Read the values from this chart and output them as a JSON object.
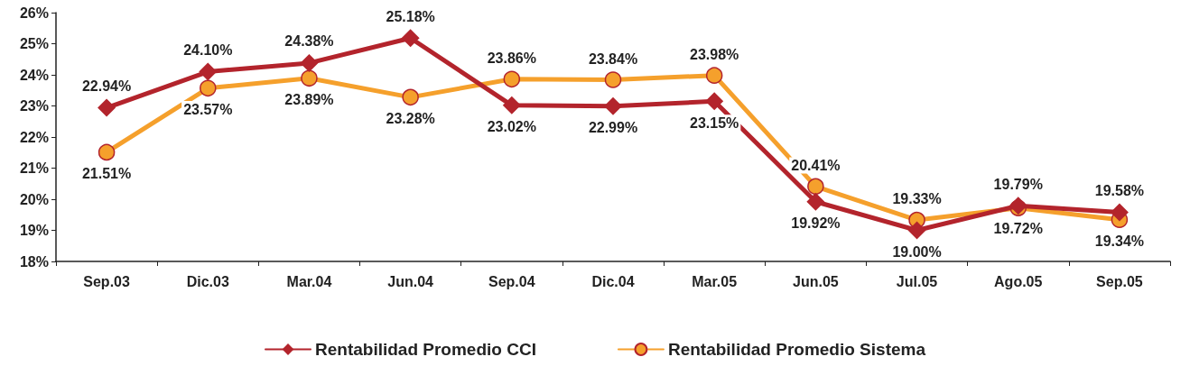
{
  "chart_data": {
    "type": "line",
    "categories": [
      "Sep.03",
      "Dic.03",
      "Mar.04",
      "Jun.04",
      "Sep.04",
      "Dic.04",
      "Mar.05",
      "Jun.05",
      "Jul.05",
      "Ago.05",
      "Sep.05"
    ],
    "series": [
      {
        "name": "Rentabilidad Promedio CCI",
        "color": "#b3242c",
        "marker": "diamond",
        "values": [
          22.94,
          24.1,
          24.38,
          25.18,
          23.02,
          22.99,
          23.15,
          19.92,
          19.0,
          19.79,
          19.58
        ],
        "value_labels": [
          "22.94%",
          "24.10%",
          "24.38%",
          "25.18%",
          "23.02%",
          "22.99%",
          "23.15%",
          "19.92%",
          "19.00%",
          "19.79%",
          "19.58%"
        ]
      },
      {
        "name": "Rentabilidad Promedio Sistema",
        "color": "#f5a02c",
        "marker": "circle",
        "values": [
          21.51,
          23.57,
          23.89,
          23.28,
          23.86,
          23.84,
          23.98,
          20.41,
          19.33,
          19.72,
          19.34
        ],
        "value_labels": [
          "21.51%",
          "23.57%",
          "23.89%",
          "23.28%",
          "23.86%",
          "23.84%",
          "23.98%",
          "20.41%",
          "19.33%",
          "19.72%",
          "19.34%"
        ]
      }
    ],
    "ylim": [
      18,
      26
    ],
    "yticks": [
      {
        "value": 18,
        "label": "18%"
      },
      {
        "value": 19,
        "label": "19%"
      },
      {
        "value": 20,
        "label": "20%"
      },
      {
        "value": 21,
        "label": "21%"
      },
      {
        "value": 22,
        "label": "22%"
      },
      {
        "value": 23,
        "label": "23%"
      },
      {
        "value": 24,
        "label": "24%"
      },
      {
        "value": 25,
        "label": "25%"
      },
      {
        "value": 26,
        "label": "26%"
      }
    ],
    "legend": "bottom"
  }
}
